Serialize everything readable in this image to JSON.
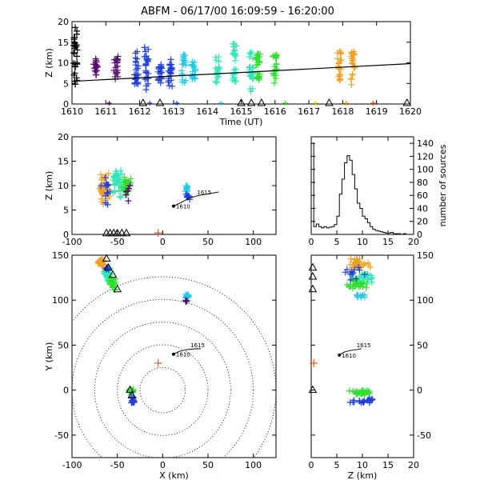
{
  "title": "ABFM - 06/17/00 16:09:59 - 16:20:00",
  "colors": {
    "purple": "#5a0a6e",
    "blue": "#1f3fe0",
    "cyan": "#22c8e6",
    "aqua": "#2ee8b8",
    "green": "#2ee02e",
    "yellow": "#d8d800",
    "orange": "#f0a020",
    "red_orange": "#e85010"
  },
  "chart_data": [
    {
      "id": "time_height",
      "type": "scatter",
      "xlabel": "Time (UT)",
      "ylabel": "Z (km)",
      "xlim": [
        1610,
        1620
      ],
      "ylim": [
        0,
        20
      ],
      "xticks": [
        "1610",
        "1611",
        "1612",
        "1613",
        "1614",
        "1615",
        "1616",
        "1617",
        "1618",
        "1619",
        "1620"
      ],
      "yticks": [
        "0",
        "5",
        "10",
        "15",
        "20"
      ],
      "columns": [
        {
          "t": 1610.1,
          "zmin": 3,
          "zmax": 19,
          "color": "#000000"
        },
        {
          "t": 1610.7,
          "zmin": 7,
          "zmax": 11,
          "color": "#5a0a6e"
        },
        {
          "t": 1611.3,
          "zmin": 6,
          "zmax": 13,
          "color": "#5a0a6e"
        },
        {
          "t": 1611.9,
          "zmin": 4,
          "zmax": 13,
          "color": "#1f3fe0"
        },
        {
          "t": 1612.2,
          "zmin": 3,
          "zmax": 14,
          "color": "#1f3fe0"
        },
        {
          "t": 1612.6,
          "zmin": 5,
          "zmax": 10,
          "color": "#1f3fe0"
        },
        {
          "t": 1612.9,
          "zmin": 4,
          "zmax": 11,
          "color": "#1f3fe0"
        },
        {
          "t": 1613.3,
          "zmin": 5,
          "zmax": 12,
          "color": "#22c8e6"
        },
        {
          "t": 1613.6,
          "zmin": 6,
          "zmax": 11,
          "color": "#22c8e6"
        },
        {
          "t": 1614.3,
          "zmin": 5,
          "zmax": 12,
          "color": "#2ee8b8"
        },
        {
          "t": 1614.8,
          "zmin": 4,
          "zmax": 15,
          "color": "#2ee8b8"
        },
        {
          "t": 1615.3,
          "zmin": 3,
          "zmax": 13,
          "color": "#2ee8b8"
        },
        {
          "t": 1615.5,
          "zmin": 5,
          "zmax": 13,
          "color": "#2ee02e"
        },
        {
          "t": 1616.0,
          "zmin": 5,
          "zmax": 12,
          "color": "#2ee02e"
        },
        {
          "t": 1617.9,
          "zmin": 5,
          "zmax": 13,
          "color": "#f0a020"
        },
        {
          "t": 1618.3,
          "zmin": 4,
          "zmax": 13,
          "color": "#f0a020"
        }
      ],
      "trend": {
        "x": [
          1610,
          1620
        ],
        "y": [
          5.5,
          9.8
        ]
      },
      "triangles": [
        1612.1,
        1612.6,
        1615.0,
        1615.3,
        1615.6,
        1617.6,
        1619.9
      ],
      "ground_marks": [
        {
          "t": 1611.1,
          "color": "#5a0a6e"
        },
        {
          "t": 1612.3,
          "color": "#1f3fe0"
        },
        {
          "t": 1613.1,
          "color": "#1f3fe0"
        },
        {
          "t": 1614.4,
          "color": "#22c8e6"
        },
        {
          "t": 1616.3,
          "color": "#2ee02e"
        },
        {
          "t": 1617.2,
          "color": "#d8d800"
        },
        {
          "t": 1618.1,
          "color": "#f0a020"
        },
        {
          "t": 1618.9,
          "color": "#e85010"
        }
      ]
    },
    {
      "id": "x_z",
      "type": "scatter",
      "xlabel": "",
      "ylabel": "Z (km)",
      "xlim": [
        -100,
        125
      ],
      "ylim": [
        0,
        20
      ],
      "xticks": [
        "-100",
        "-50",
        "0",
        "50",
        "100"
      ],
      "yticks": [
        "0",
        "5",
        "10",
        "15",
        "20"
      ],
      "clusters": [
        {
          "cx": -65,
          "cz": 10,
          "rx": 8,
          "rz": 4,
          "color": "#f0a020",
          "n": 40
        },
        {
          "cx": -62,
          "cz": 9,
          "rx": 8,
          "rz": 5,
          "color": "#1f3fe0",
          "n": 15
        },
        {
          "cx": -50,
          "cz": 11,
          "rx": 8,
          "rz": 4,
          "color": "#2ee8b8",
          "n": 40
        },
        {
          "cx": -40,
          "cz": 10,
          "rx": 6,
          "rz": 3,
          "color": "#2ee02e",
          "n": 40
        },
        {
          "cx": -38,
          "cz": 9,
          "rx": 4,
          "rz": 3,
          "color": "#5a0a6e",
          "n": 6
        },
        {
          "cx": 27,
          "cz": 9,
          "rx": 3,
          "rz": 2,
          "color": "#22c8e6",
          "n": 14
        },
        {
          "cx": 28,
          "cz": 8,
          "rx": 3,
          "rz": 2,
          "color": "#1f3fe0",
          "n": 8
        }
      ],
      "track": {
        "x": [
          12,
          20,
          28,
          38,
          50,
          62
        ],
        "z": [
          5.8,
          6.5,
          7.3,
          7.9,
          8.3,
          8.7
        ]
      },
      "track_start_label": "1610",
      "track_end_label": "1615",
      "triangles_x": [
        -62,
        -58,
        -54,
        -50,
        -45,
        -40
      ],
      "origin_marker": {
        "x": -5,
        "z": 0.3,
        "color": "#e85010"
      }
    },
    {
      "id": "histogram",
      "type": "bar",
      "xlabel": "",
      "ylabel": "number of sources",
      "xlim": [
        0,
        20
      ],
      "ylim": [
        0,
        150
      ],
      "xticks": [
        "0",
        "5",
        "10",
        "15",
        "20"
      ],
      "yticks": [
        "0",
        "20",
        "40",
        "60",
        "80",
        "100",
        "120",
        "140"
      ],
      "bin_width": 0.5,
      "values": [
        140,
        12,
        16,
        12,
        10,
        12,
        10,
        11,
        12,
        15,
        28,
        62,
        85,
        110,
        121,
        114,
        92,
        70,
        48,
        40,
        28,
        24,
        18,
        12,
        8,
        6,
        5,
        4,
        3,
        2,
        2,
        3,
        1,
        1,
        1,
        0,
        1,
        0,
        0,
        0
      ]
    },
    {
      "id": "plan_xy",
      "type": "scatter",
      "xlabel": "X (km)",
      "ylabel": "Y (km)",
      "xlim": [
        -100,
        125
      ],
      "ylim": [
        -75,
        150
      ],
      "xticks": [
        "-100",
        "-50",
        "0",
        "50",
        "100"
      ],
      "yticks": [
        "-50",
        "0",
        "50",
        "100",
        "150"
      ],
      "range_rings_km": [
        25,
        50,
        75,
        100,
        125
      ],
      "clusters": [
        {
          "cx": -68,
          "cy": 142,
          "rx": 5,
          "ry": 6,
          "color": "#f0a020",
          "n": 30
        },
        {
          "cx": -60,
          "cy": 128,
          "rx": 6,
          "ry": 10,
          "color": "#2ee8b8",
          "n": 30
        },
        {
          "cx": -55,
          "cy": 118,
          "rx": 5,
          "ry": 8,
          "color": "#2ee02e",
          "n": 25
        },
        {
          "cx": -62,
          "cy": 135,
          "rx": 4,
          "ry": 8,
          "color": "#1f3fe0",
          "n": 8
        },
        {
          "cx": 27,
          "cy": 104,
          "rx": 3,
          "ry": 4,
          "color": "#22c8e6",
          "n": 14
        },
        {
          "cx": 26,
          "cy": 99,
          "rx": 3,
          "ry": 2,
          "color": "#5a0a6e",
          "n": 5
        },
        {
          "cx": -35,
          "cy": -2,
          "rx": 4,
          "ry": 6,
          "color": "#2ee02e",
          "n": 20
        },
        {
          "cx": -33,
          "cy": -12,
          "rx": 3,
          "ry": 6,
          "color": "#1f3fe0",
          "n": 18
        }
      ],
      "track": {
        "x": [
          12,
          18,
          26,
          36,
          42
        ],
        "y": [
          40,
          43,
          45,
          46,
          46
        ]
      },
      "track_start_label": "1610",
      "track_end_label": "1615",
      "triangles": [
        {
          "x": -62,
          "y": 146
        },
        {
          "x": -60,
          "y": 136
        },
        {
          "x": -55,
          "y": 128
        },
        {
          "x": -50,
          "y": 112
        },
        {
          "x": -36,
          "y": 0
        },
        {
          "x": -34,
          "y": -6
        }
      ],
      "origin_marker": {
        "x": -5,
        "y": 30,
        "color": "#e85010"
      }
    },
    {
      "id": "z_y",
      "type": "scatter",
      "xlabel": "Z (km)",
      "ylabel": "",
      "xlim": [
        0,
        20
      ],
      "ylim": [
        -75,
        150
      ],
      "xticks": [
        "0",
        "5",
        "10",
        "15",
        "20"
      ],
      "yticks": [
        "-50",
        "0",
        "50",
        "100",
        "150"
      ],
      "clusters": [
        {
          "cz": 9,
          "cy": 140,
          "rz": 3,
          "ry": 8,
          "color": "#f0a020",
          "n": 30
        },
        {
          "cz": 10,
          "cy": 125,
          "rz": 4,
          "ry": 10,
          "color": "#2ee8b8",
          "n": 30
        },
        {
          "cz": 9,
          "cy": 118,
          "rz": 3,
          "ry": 8,
          "color": "#2ee02e",
          "n": 25
        },
        {
          "cz": 8,
          "cy": 130,
          "rz": 4,
          "ry": 12,
          "color": "#1f3fe0",
          "n": 12
        },
        {
          "cz": 10,
          "cy": 105,
          "rz": 2,
          "ry": 5,
          "color": "#22c8e6",
          "n": 10
        },
        {
          "cz": 10,
          "cy": -3,
          "rz": 3,
          "ry": 4,
          "color": "#2ee02e",
          "n": 30
        },
        {
          "cz": 10,
          "cy": -12,
          "rz": 3,
          "ry": 4,
          "color": "#1f3fe0",
          "n": 20
        }
      ],
      "track": {
        "z": [
          5.5,
          6.3,
          7.5,
          8.8,
          9.8
        ],
        "y": [
          39,
          42,
          44,
          45,
          46
        ]
      },
      "track_start_label": "1610",
      "track_end_label": "1615",
      "triangles": [
        {
          "z": 0.3,
          "y": 136
        },
        {
          "z": 0.3,
          "y": 126
        },
        {
          "z": 0.3,
          "y": 112
        },
        {
          "z": 0.3,
          "y": 0
        }
      ],
      "origin_marker": {
        "z": 0.5,
        "y": 30,
        "color": "#e85010"
      }
    }
  ]
}
